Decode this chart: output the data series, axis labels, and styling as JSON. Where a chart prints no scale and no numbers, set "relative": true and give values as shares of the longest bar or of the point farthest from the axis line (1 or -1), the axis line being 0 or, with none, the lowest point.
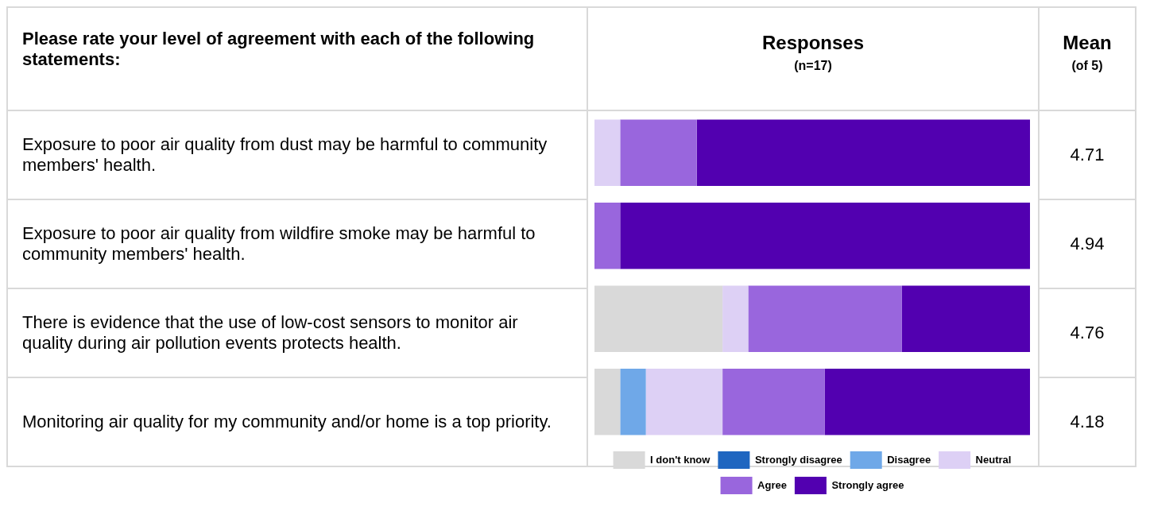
{
  "chart_data": {
    "type": "bar",
    "orientation": "horizontal",
    "stacked": true,
    "relative": true,
    "title": "Responses",
    "subtitle": "(n=17)",
    "ylabel": "Please rate your level of agreement with each of the following statements:",
    "categories": [
      "Exposure to poor air quality from dust may be harmful to community members' health.",
      "Exposure to poor air quality from wildfire smoke may be harmful to community members' health.",
      "There is evidence that the use of low-cost sensors to monitor air quality during air pollution events protects health.",
      "Monitoring air quality for my community and/or home is a top priority."
    ],
    "series": [
      {
        "name": "I don't know",
        "color": "#d9d9d9",
        "values": [
          0,
          0,
          0.294,
          0.059
        ]
      },
      {
        "name": "Strongly disagree",
        "color": "#1f66c0",
        "values": [
          0,
          0,
          0,
          0
        ]
      },
      {
        "name": "Disagree",
        "color": "#6fa8e8",
        "values": [
          0,
          0,
          0,
          0.059
        ]
      },
      {
        "name": "Neutral",
        "color": "#ddd0f5",
        "values": [
          0.059,
          0,
          0.059,
          0.176
        ]
      },
      {
        "name": "Agree",
        "color": "#9966dd",
        "values": [
          0.176,
          0.059,
          0.353,
          0.235
        ]
      },
      {
        "name": "Strongly agree",
        "color": "#5200b0",
        "values": [
          0.765,
          0.941,
          0.294,
          0.471
        ]
      }
    ],
    "annotations": [
      "Mean (of 5)",
      "4.71",
      "4.94",
      "4.76",
      "4.18"
    ],
    "legend": "bottom"
  }
}
